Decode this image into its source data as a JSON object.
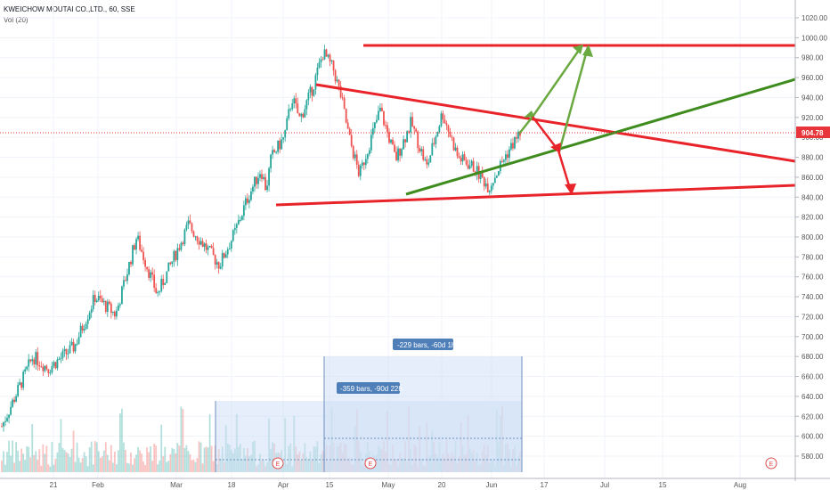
{
  "header": {
    "title": "KWEICHOW MOUTAI CO.,LTD., 60, SSE",
    "indicator": "Vol (20)"
  },
  "colors": {
    "up": "#26a69a",
    "down": "#ef5350",
    "red_line": "#e8232a",
    "green_line": "#3f8c1e",
    "green_arrow": "#6aa840",
    "price_tag": "#e8353b",
    "measure": "#4f7fb9"
  },
  "chart_data": {
    "type": "candlestick",
    "title": "KWEICHOW MOUTAI CO.,LTD., 60, SSE",
    "ylim": [
      566,
      1030
    ],
    "y_ticks": [
      580,
      600,
      620,
      640,
      660,
      680,
      700,
      720,
      740,
      760,
      780,
      800,
      820,
      840,
      860,
      880,
      900,
      920,
      940,
      960,
      980,
      1000,
      1020
    ],
    "y_tick_labels": [
      "580.00",
      "600.00",
      "620.00",
      "640.00",
      "660.00",
      "680.00",
      "700.00",
      "720.00",
      "740.00",
      "760.00",
      "780.00",
      "800.00",
      "820.00",
      "840.00",
      "860.00",
      "880.00",
      "900.00",
      "920.00",
      "940.00",
      "960.00",
      "980.00",
      "1000.00",
      "1020.00"
    ],
    "x_labels": [
      "21",
      "Feb",
      "Mar",
      "18",
      "Apr",
      "15",
      "May",
      "20",
      "Jun",
      "17",
      "Jul",
      "15",
      "Aug"
    ],
    "last_price": 904.78,
    "last_price_label": "904.78",
    "price_path": [
      {
        "t": 0,
        "p": 610
      },
      {
        "t": 0.06,
        "p": 680
      },
      {
        "t": 0.09,
        "p": 668
      },
      {
        "t": 0.14,
        "p": 690
      },
      {
        "t": 0.18,
        "p": 740
      },
      {
        "t": 0.22,
        "p": 722
      },
      {
        "t": 0.26,
        "p": 800
      },
      {
        "t": 0.3,
        "p": 742
      },
      {
        "t": 0.36,
        "p": 812
      },
      {
        "t": 0.42,
        "p": 772
      },
      {
        "t": 0.45,
        "p": 805
      },
      {
        "t": 0.475,
        "p": 840
      },
      {
        "t": 0.5,
        "p": 868
      },
      {
        "t": 0.51,
        "p": 848
      },
      {
        "t": 0.52,
        "p": 880
      },
      {
        "t": 0.545,
        "p": 900
      },
      {
        "t": 0.56,
        "p": 940
      },
      {
        "t": 0.575,
        "p": 918
      },
      {
        "t": 0.6,
        "p": 950
      },
      {
        "t": 0.62,
        "p": 985
      },
      {
        "t": 0.64,
        "p": 968
      },
      {
        "t": 0.655,
        "p": 940
      },
      {
        "t": 0.67,
        "p": 900
      },
      {
        "t": 0.69,
        "p": 862
      },
      {
        "t": 0.71,
        "p": 895
      },
      {
        "t": 0.73,
        "p": 928
      },
      {
        "t": 0.76,
        "p": 878
      },
      {
        "t": 0.79,
        "p": 915
      },
      {
        "t": 0.82,
        "p": 870
      },
      {
        "t": 0.85,
        "p": 925
      },
      {
        "t": 0.88,
        "p": 880
      },
      {
        "t": 0.91,
        "p": 870
      },
      {
        "t": 0.94,
        "p": 850
      },
      {
        "t": 0.97,
        "p": 880
      },
      {
        "t": 1.0,
        "p": 905
      }
    ],
    "annotations": {
      "measure_1": "-229 bars, -60d 1h",
      "measure_2": "-359 bars, -90d 22h",
      "event_marker": "E"
    }
  }
}
